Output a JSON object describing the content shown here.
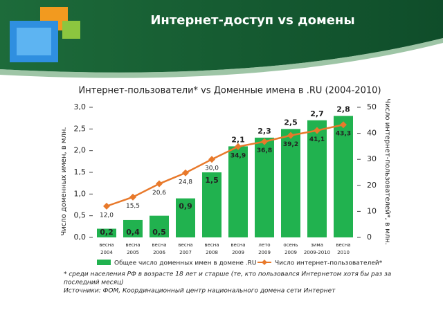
{
  "page_title": "Интернет-доступ vs домены",
  "chart_data": {
    "type": "bar-line",
    "title": "Интернет-пользователи* vs Доменные имена в .RU (2004-2010)",
    "y_label": "Число доменных имен, в млн.",
    "y2_label": "Число интернет-пользователей*, в млн.",
    "categories": [
      [
        "весна",
        "2004"
      ],
      [
        "весна",
        "2005"
      ],
      [
        "весна",
        "2006"
      ],
      [
        "весна",
        "2007"
      ],
      [
        "весна",
        "2008"
      ],
      [
        "весна",
        "2009"
      ],
      [
        "лето",
        "2009"
      ],
      [
        "осень",
        "2009"
      ],
      [
        "зима",
        "2009-2010"
      ],
      [
        "весна",
        "2010"
      ]
    ],
    "series": [
      {
        "name": "Общее число доменных имен в домене .RU",
        "type": "bar",
        "color": "#21b24f",
        "values": [
          0.2,
          0.4,
          0.5,
          0.9,
          1.5,
          2.1,
          2.3,
          2.5,
          2.7,
          2.8
        ],
        "value_labels": [
          "0,2",
          "0,4",
          "0,5",
          "0,9",
          "1,5",
          "2,1",
          "2,3",
          "2,5",
          "2,7",
          "2,8"
        ]
      },
      {
        "name": "Число интернет-пользователей*",
        "type": "line",
        "axis": "y2",
        "color": "#e8792b",
        "values": [
          12.0,
          15.5,
          20.6,
          24.8,
          30.0,
          34.9,
          36.8,
          39.2,
          41.1,
          43.3
        ],
        "value_labels": [
          "12,0",
          "15,5",
          "20,6",
          "24,8",
          "30,0",
          "34,9",
          "36,8",
          "39,2",
          "41,1",
          "43,3"
        ]
      }
    ],
    "ylim": [
      0,
      3
    ],
    "yticks": [
      {
        "value": 0,
        "label": "0,0"
      },
      {
        "value": 0.5,
        "label": "0,5"
      },
      {
        "value": 1,
        "label": "1,0"
      },
      {
        "value": 1.5,
        "label": "1,5"
      },
      {
        "value": 2,
        "label": "2,0"
      },
      {
        "value": 2.5,
        "label": "2,5"
      },
      {
        "value": 3,
        "label": "3,0"
      }
    ],
    "y2lim": [
      0,
      50
    ],
    "y2ticks": [
      0,
      10,
      20,
      30,
      40,
      50
    ],
    "grid": false,
    "legend": "bottom",
    "notes": [
      "* среди населения РФ в возрасте 18 лет и старше (те, кто пользовался Интернетом хотя бы раз за",
      "последний месяц)",
      "Источники: ФОМ, Координационный центр национального домена сети Интернет"
    ]
  }
}
